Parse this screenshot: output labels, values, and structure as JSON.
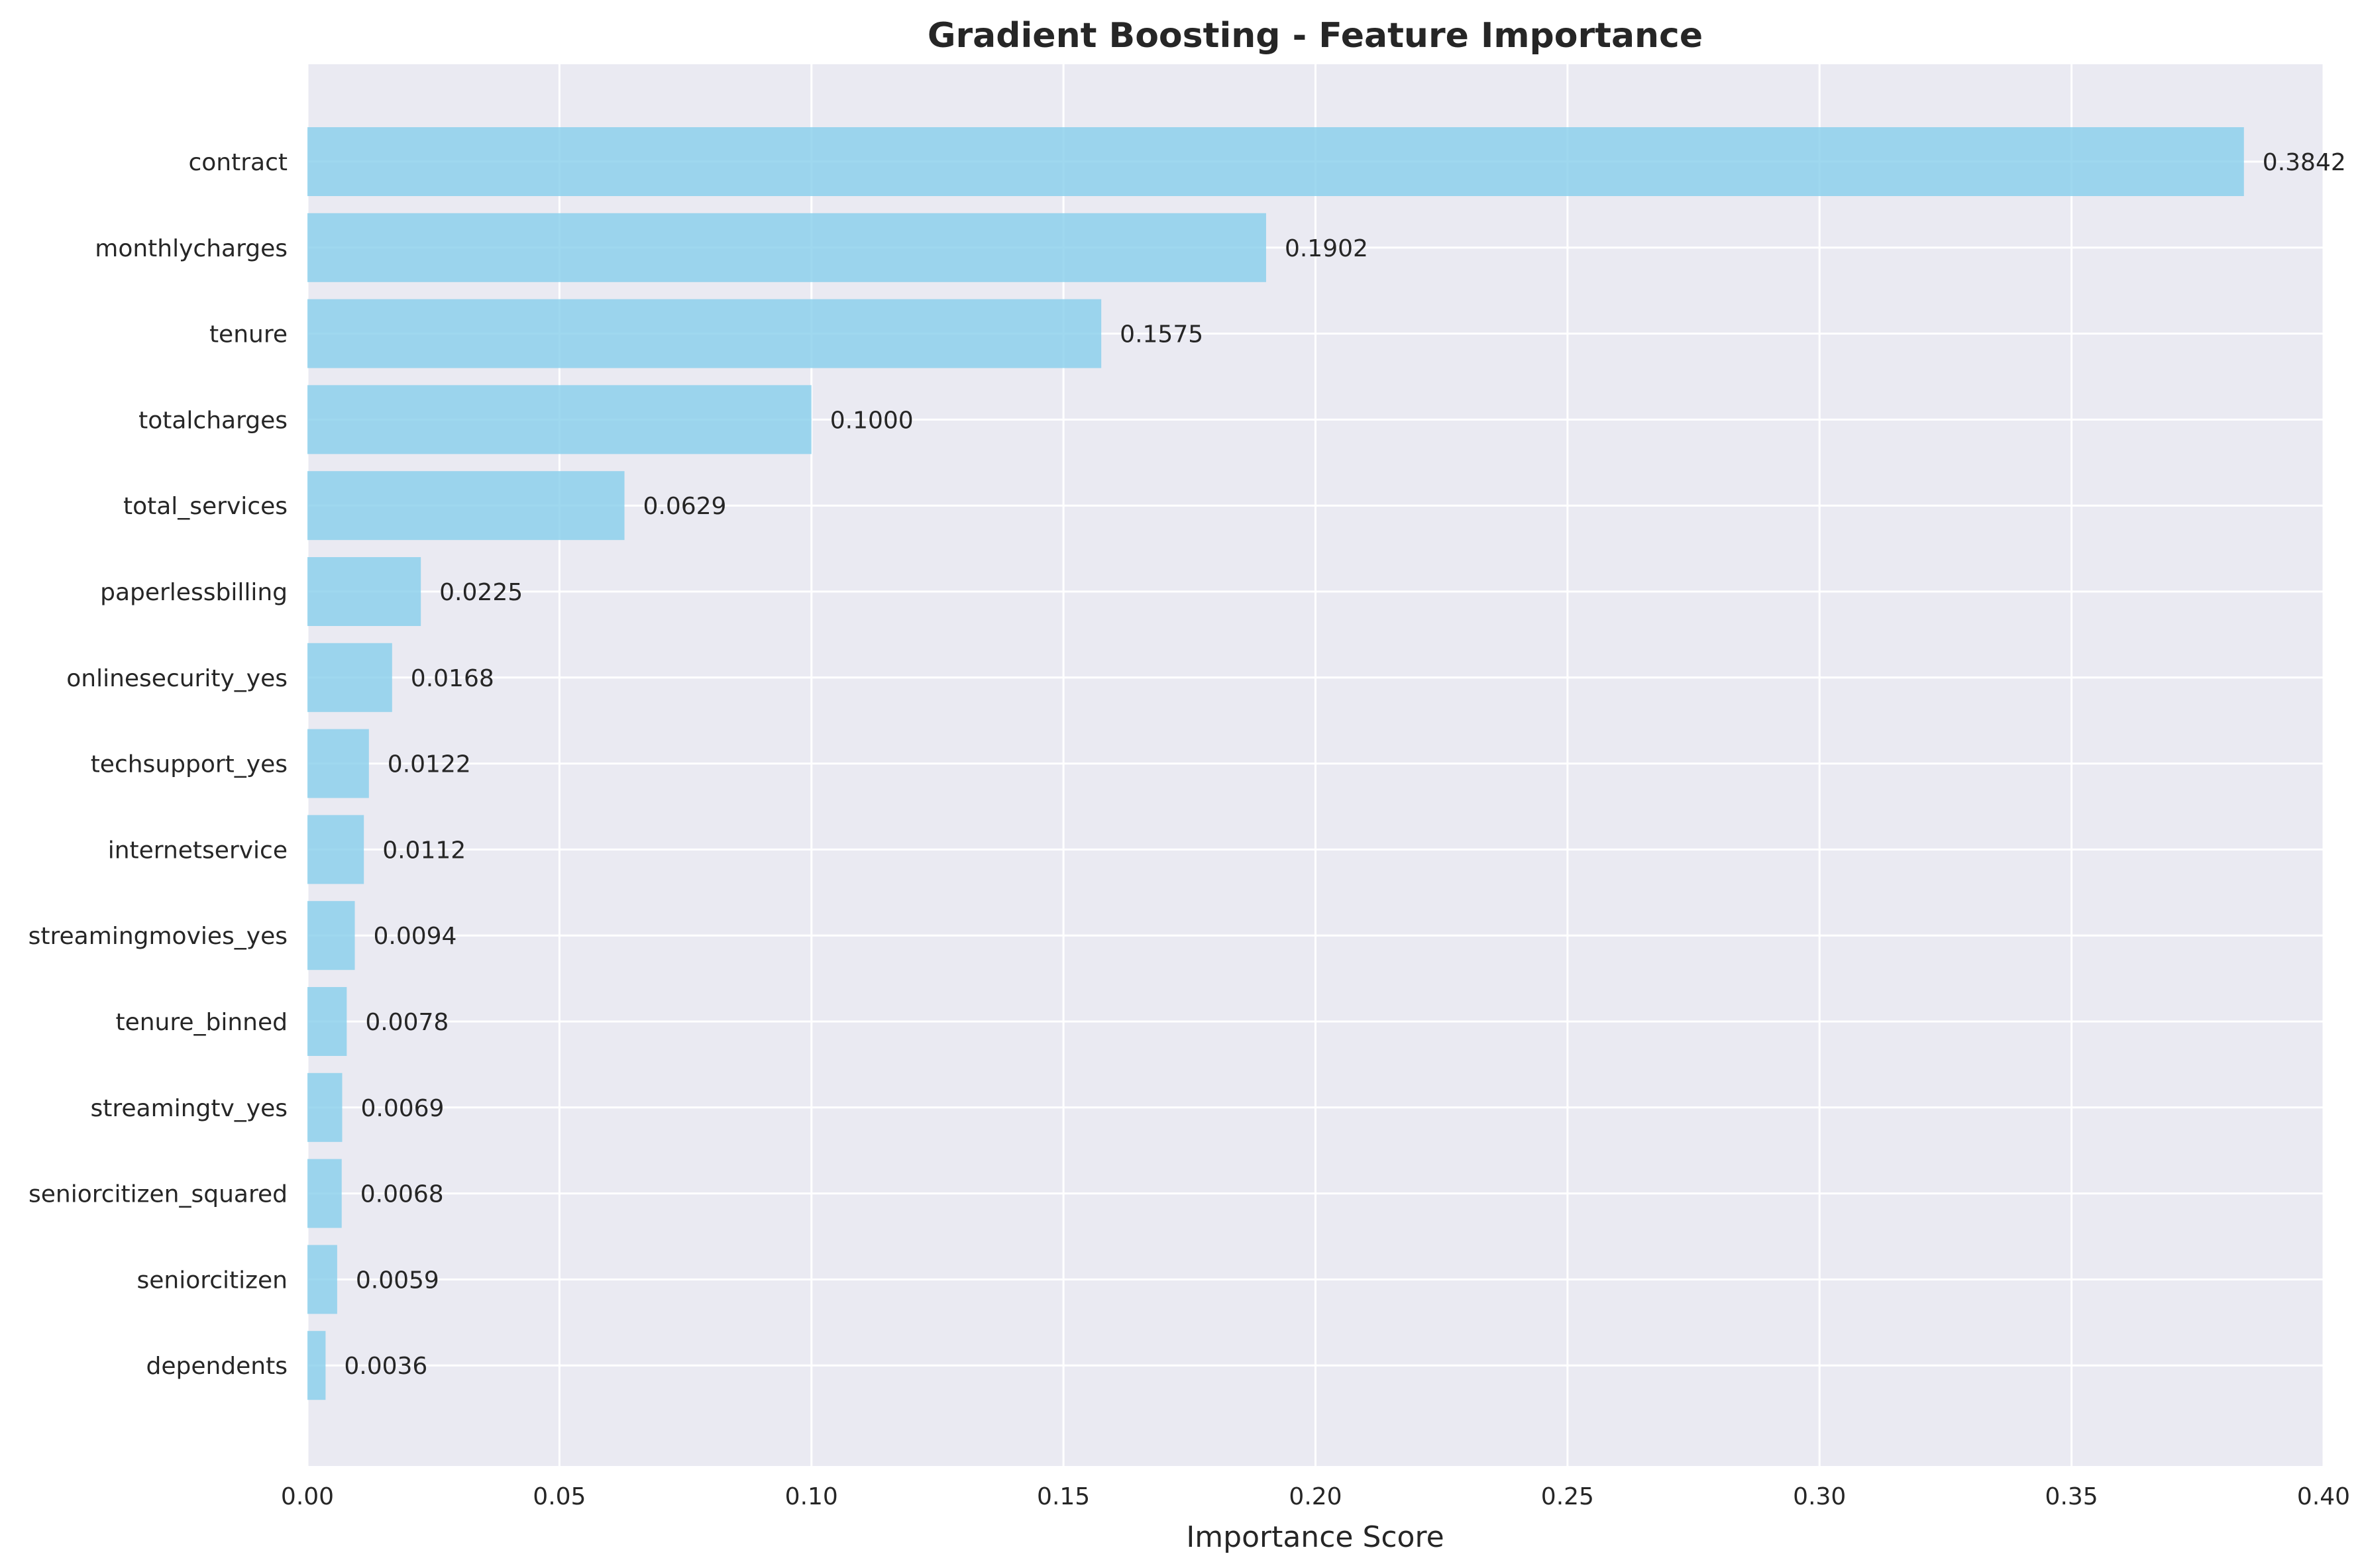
{
  "chart_data": {
    "type": "bar",
    "orientation": "horizontal",
    "title": "Gradient Boosting - Feature Importance",
    "xlabel": "Importance Score",
    "ylabel": "",
    "xlim": [
      0,
      0.4
    ],
    "xticks": [
      "0.00",
      "0.05",
      "0.10",
      "0.15",
      "0.20",
      "0.25",
      "0.30",
      "0.35",
      "0.40"
    ],
    "grid": true,
    "bar_color": "#87ceeb",
    "categories": [
      "contract",
      "monthlycharges",
      "tenure",
      "totalcharges",
      "total_services",
      "paperlessbilling",
      "onlinesecurity_yes",
      "techsupport_yes",
      "internetservice",
      "streamingmovies_yes",
      "tenure_binned",
      "streamingtv_yes",
      "seniorcitizen_squared",
      "seniorcitizen",
      "dependents"
    ],
    "values": [
      0.3842,
      0.1902,
      0.1575,
      0.1,
      0.0629,
      0.0225,
      0.0168,
      0.0122,
      0.0112,
      0.0094,
      0.0078,
      0.0069,
      0.0068,
      0.0059,
      0.0036
    ],
    "value_labels": [
      "0.3842",
      "0.1902",
      "0.1575",
      "0.1000",
      "0.0629",
      "0.0225",
      "0.0168",
      "0.0122",
      "0.0112",
      "0.0094",
      "0.0078",
      "0.0069",
      "0.0068",
      "0.0059",
      "0.0036"
    ]
  }
}
